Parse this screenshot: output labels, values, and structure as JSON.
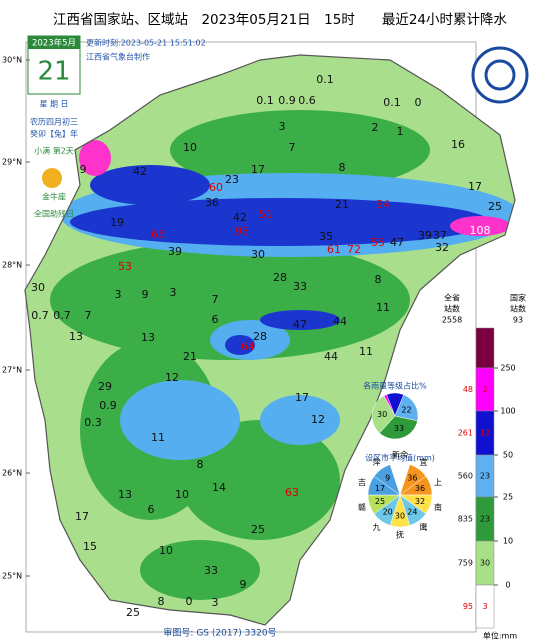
{
  "header": {
    "title": "江西省国家站、区域站　2023年05月21日　15时　　最近24小时累计降水",
    "update": "更新时刻:2023-05-21  15:51:02",
    "maker": "江西省气象台制作"
  },
  "calendar": {
    "month": "2023年5月",
    "day": "21",
    "weekday": "星 期 日",
    "lunar": "农历四月初三",
    "year": "癸卯【兔】年",
    "term": "小满  第2天",
    "zodiac": "金牛座",
    "holiday": "全国助残日"
  },
  "latitudes": [
    "30°N",
    "29°N",
    "28°N",
    "27°N",
    "26°N",
    "25°N"
  ],
  "stations": [
    0.1,
    0.1,
    0.9,
    0.6,
    3,
    0.1,
    0,
    2,
    1,
    16,
    10,
    7,
    17,
    23,
    8,
    42,
    9,
    60,
    36,
    21,
    54,
    17,
    25,
    19,
    42,
    51,
    65,
    95,
    61,
    72,
    55,
    47,
    39,
    37,
    32,
    108,
    143,
    39,
    30,
    53,
    35,
    30,
    3,
    9,
    3,
    28,
    33,
    8,
    0.7,
    0.7,
    7,
    7,
    11,
    6,
    47,
    44,
    13,
    13,
    21,
    28,
    64,
    44,
    11,
    12,
    29,
    0.9,
    0.3,
    11,
    17,
    12,
    8,
    14,
    63,
    10,
    13,
    17,
    6,
    25,
    15,
    10,
    33,
    9,
    8,
    0,
    3,
    25
  ],
  "legend": {
    "headers": [
      "全省\n站数",
      "国家\n站数"
    ],
    "totals": [
      2558,
      93
    ],
    "levels": [
      250,
      100,
      50,
      25,
      10,
      0
    ],
    "province_counts": [
      48,
      261,
      560,
      835,
      759,
      95
    ],
    "national_counts": [
      2,
      12,
      23,
      23,
      30,
      3
    ],
    "unit": "单位:mm"
  },
  "pie_share": {
    "title": "各雨量等级占比%",
    "values": [
      2,
      12,
      22,
      33,
      30
    ]
  },
  "pie_city": {
    "title": "设区市平均值(mm)",
    "cities": [
      "新余",
      "宜",
      "上",
      "南",
      "鹰",
      "抚",
      "九",
      "赣",
      "吉",
      "萍"
    ],
    "values": [
      null,
      36,
      36,
      32,
      24,
      30,
      20,
      25,
      17,
      9
    ]
  },
  "footer": "审图号: GS (2017) 3320号"
}
